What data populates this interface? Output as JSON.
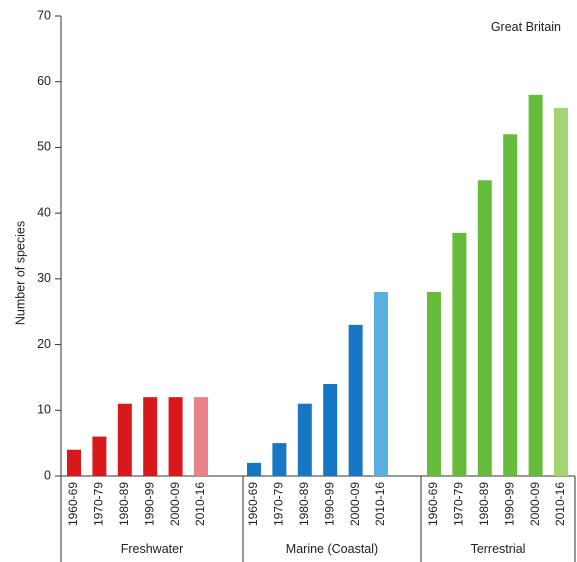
{
  "chart_data": {
    "type": "bar",
    "annotation": "Great Britain",
    "ylabel": "Number of species",
    "ylim": [
      0,
      70
    ],
    "yticks": [
      0,
      10,
      20,
      30,
      40,
      50,
      60,
      70
    ],
    "grid": false,
    "groups": [
      {
        "name": "Freshwater",
        "categories": [
          "1960-69",
          "1970-79",
          "1980-89",
          "1990-99",
          "2000-09",
          "2010-16"
        ],
        "values": [
          4,
          6,
          11,
          12,
          12,
          12
        ],
        "colors": [
          "#d7191c",
          "#d7191c",
          "#d7191c",
          "#d7191c",
          "#d7191c",
          "#e9838a"
        ]
      },
      {
        "name": "Marine (Coastal)",
        "categories": [
          "1960-69",
          "1970-79",
          "1980-89",
          "1990-99",
          "2000-09",
          "2010-16"
        ],
        "values": [
          2,
          5,
          11,
          14,
          23,
          28
        ],
        "colors": [
          "#1777c2",
          "#1777c2",
          "#1777c2",
          "#1777c2",
          "#1777c2",
          "#5aafdf"
        ]
      },
      {
        "name": "Terrestrial",
        "categories": [
          "1960-69",
          "1970-79",
          "1980-89",
          "1990-99",
          "2000-09",
          "2010-16"
        ],
        "values": [
          28,
          37,
          45,
          52,
          58,
          56
        ],
        "colors": [
          "#66bb3a",
          "#66bb3a",
          "#66bb3a",
          "#66bb3a",
          "#66bb3a",
          "#a4d474"
        ]
      }
    ]
  }
}
